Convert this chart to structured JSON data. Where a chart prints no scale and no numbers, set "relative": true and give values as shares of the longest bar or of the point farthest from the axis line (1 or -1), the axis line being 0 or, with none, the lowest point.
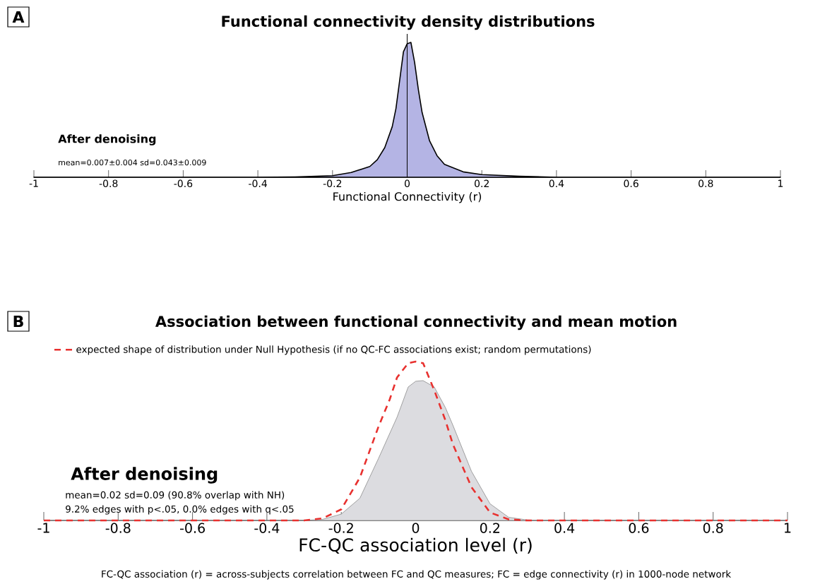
{
  "chart_data": [
    {
      "type": "area",
      "title": "Functional connectivity density distributions",
      "xlabel": "Functional Connectivity (r)",
      "relative": true,
      "xlim": [
        -1,
        1
      ],
      "xticks": [
        -1,
        -0.8,
        -0.6,
        -0.4,
        -0.2,
        0,
        0.2,
        0.4,
        0.6,
        0.8,
        1
      ],
      "series": [
        {
          "color": "#b4b4e4",
          "x": [
            -1,
            -0.4,
            -0.3,
            -0.2,
            -0.15,
            -0.1,
            -0.08,
            -0.06,
            -0.04,
            -0.03,
            -0.02,
            -0.01,
            0,
            0.01,
            0.02,
            0.03,
            0.04,
            0.06,
            0.08,
            0.1,
            0.15,
            0.2,
            0.3,
            0.4,
            1
          ],
          "values": [
            0,
            0,
            0.003,
            0.012,
            0.035,
            0.08,
            0.13,
            0.22,
            0.375,
            0.51,
            0.72,
            0.93,
            0.99,
            1,
            0.85,
            0.65,
            0.48,
            0.27,
            0.16,
            0.096,
            0.04,
            0.02,
            0.007,
            0,
            0
          ]
        }
      ],
      "ref_lines": [
        {
          "axis": "x",
          "value": 0
        }
      ],
      "annotations": [
        "A",
        "After denoising",
        "mean=0.007±0.004 sd=0.043±0.009"
      ]
    },
    {
      "type": "area",
      "title": "Association between functional connectivity and mean motion",
      "xlabel": "FC-QC association level (r)",
      "relative": true,
      "xlim": [
        -1,
        1
      ],
      "xticks": [
        -1,
        -0.8,
        -0.6,
        -0.4,
        -0.2,
        0,
        0.2,
        0.4,
        0.6,
        0.8,
        1
      ],
      "legend": "top left",
      "series": [
        {
          "color": "#dcdce0",
          "x": [
            -1,
            -0.3,
            -0.25,
            -0.2,
            -0.15,
            -0.1,
            -0.05,
            -0.02,
            0,
            0.02,
            0.05,
            0.08,
            0.1,
            0.15,
            0.2,
            0.25,
            0.3,
            0.35,
            1
          ],
          "values": [
            0,
            0,
            0.007,
            0.04,
            0.14,
            0.39,
            0.65,
            0.84,
            0.876,
            0.88,
            0.84,
            0.71,
            0.6,
            0.31,
            0.105,
            0.02,
            0.003,
            0,
            0
          ]
        },
        {
          "type": "line",
          "name": "expected shape of distribution under Null Hypothesis (if no QC-FC associations exist; random permutations)",
          "color": "#e8312f",
          "line_style": "dashed",
          "x": [
            -1,
            -0.3,
            -0.25,
            -0.2,
            -0.15,
            -0.1,
            -0.07,
            -0.05,
            -0.02,
            0,
            0.02,
            0.05,
            0.08,
            0.1,
            0.15,
            0.2,
            0.25,
            0.3,
            1
          ],
          "values": [
            0,
            0,
            0.013,
            0.07,
            0.27,
            0.59,
            0.76,
            0.9,
            0.99,
            1,
            0.99,
            0.82,
            0.63,
            0.48,
            0.21,
            0.05,
            0.007,
            0,
            0
          ]
        }
      ],
      "annotations": [
        "B",
        "After denoising",
        "mean=0.02 sd=0.09 (90.8% overlap with NH)",
        "9.2% edges with p<.05, 0.0% edges with q<.05",
        "FC-QC association (r) = across-subjects correlation between FC and QC measures; FC = edge connectivity (r) in 1000-node network"
      ]
    }
  ]
}
